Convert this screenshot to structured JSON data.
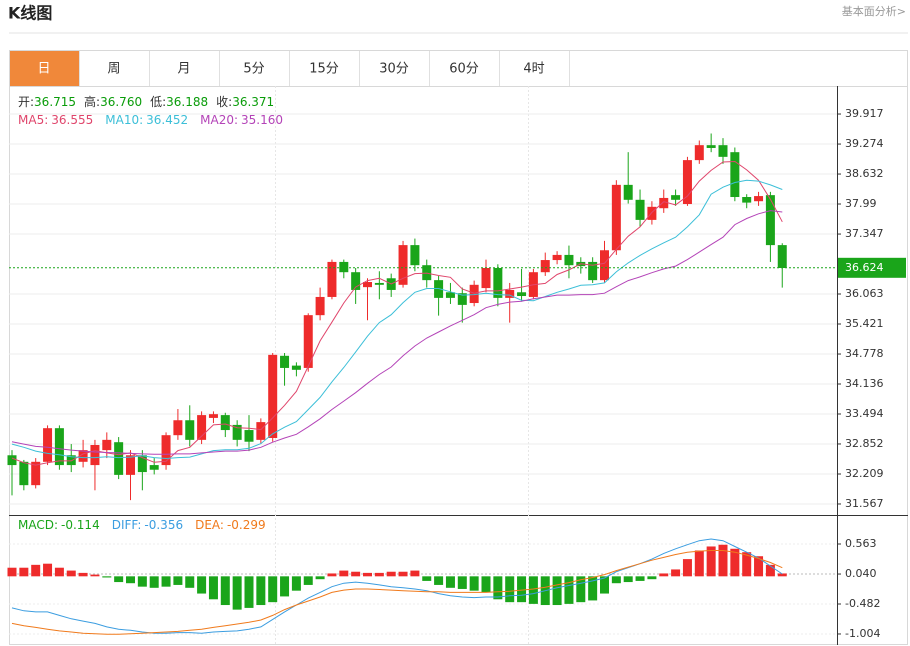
{
  "header": {
    "title": "K线图",
    "link": "基本面分析>"
  },
  "tabs": {
    "items": [
      "日",
      "周",
      "月",
      "5分",
      "15分",
      "30分",
      "60分",
      "4时"
    ],
    "active": 0
  },
  "chart_data": [
    {
      "type": "candlestick",
      "up_color": "#ee2b2b",
      "down_color": "#1aa51a",
      "grid": true,
      "ylim": [
        31.331,
        40.517
      ],
      "yticks": [
        31.567,
        32.209,
        32.852,
        33.494,
        34.136,
        34.778,
        35.421,
        36.063,
        37.347,
        37.99,
        38.632,
        39.274,
        39.917
      ],
      "last_price": 36.624,
      "last_price_color": "#1aa51a",
      "ohlc_legend": [
        {
          "label": "开:",
          "value": 36.715
        },
        {
          "label": "高:",
          "value": 36.76,
          "value_label": "36.760"
        },
        {
          "label": "低:",
          "value": 36.188
        },
        {
          "label": "收:",
          "value": 36.371
        }
      ],
      "ohlc_value_color": "#0a9c0a",
      "open": [
        32.61,
        32.47,
        31.97,
        32.47,
        33.19,
        32.61,
        32.47,
        32.4,
        32.72,
        32.89,
        32.19,
        32.61,
        32.4,
        32.4,
        33.04,
        33.36,
        32.94,
        33.41,
        33.47,
        33.26,
        33.15,
        32.94,
        32.98,
        34.74,
        34.53,
        34.48,
        35.61,
        36.0,
        36.75,
        36.53,
        36.21,
        36.3,
        36.4,
        36.26,
        37.11,
        36.68,
        36.36,
        36.1,
        36.08,
        35.87,
        36.19,
        36.62,
        35.98,
        36.1,
        36.0,
        36.53,
        36.79,
        36.9,
        36.75,
        36.75,
        36.36,
        37.0,
        38.4,
        38.08,
        37.65,
        37.9,
        38.18,
        37.99,
        38.93,
        39.25,
        39.25,
        39.1,
        38.14,
        38.05,
        38.18,
        37.11
      ],
      "high": [
        32.72,
        32.51,
        32.55,
        33.25,
        33.25,
        32.85,
        32.94,
        32.94,
        33.1,
        33.0,
        32.72,
        32.72,
        32.55,
        33.1,
        33.6,
        33.68,
        33.55,
        33.55,
        33.52,
        33.36,
        33.47,
        33.4,
        34.8,
        34.8,
        34.6,
        35.65,
        36.2,
        36.8,
        36.8,
        36.62,
        36.4,
        36.55,
        36.5,
        37.2,
        37.25,
        36.8,
        36.45,
        36.3,
        36.2,
        36.35,
        36.8,
        36.7,
        36.3,
        36.6,
        36.6,
        36.95,
        36.98,
        37.1,
        36.85,
        36.85,
        37.2,
        38.5,
        39.1,
        38.3,
        38.05,
        38.3,
        38.3,
        39.0,
        39.35,
        39.5,
        39.4,
        39.2,
        38.2,
        38.25,
        38.25,
        37.15
      ],
      "low": [
        31.75,
        31.86,
        31.9,
        32.4,
        32.3,
        32.25,
        32.35,
        31.86,
        32.55,
        32.1,
        31.65,
        31.86,
        32.2,
        32.3,
        32.94,
        32.8,
        32.85,
        33.3,
        33.0,
        32.8,
        32.7,
        32.85,
        32.9,
        34.1,
        34.3,
        34.4,
        35.5,
        35.95,
        36.4,
        35.85,
        35.5,
        35.95,
        36.0,
        36.2,
        36.55,
        36.2,
        35.6,
        35.85,
        35.45,
        35.8,
        36.1,
        35.8,
        35.45,
        35.9,
        35.95,
        36.45,
        36.7,
        36.4,
        36.5,
        36.3,
        36.3,
        36.9,
        38.0,
        37.5,
        37.55,
        37.8,
        37.95,
        37.95,
        38.85,
        39.1,
        38.85,
        38.05,
        37.9,
        37.95,
        36.75,
        36.2
      ],
      "close": [
        32.4,
        31.97,
        32.47,
        33.19,
        32.4,
        32.4,
        32.72,
        32.83,
        32.94,
        32.19,
        32.61,
        32.25,
        32.3,
        33.04,
        33.36,
        32.94,
        33.47,
        33.49,
        33.15,
        32.94,
        32.9,
        33.32,
        34.76,
        34.48,
        34.44,
        35.61,
        36.0,
        36.75,
        36.53,
        36.15,
        36.32,
        36.26,
        36.15,
        37.11,
        36.68,
        36.36,
        35.98,
        35.98,
        35.83,
        36.26,
        36.62,
        35.98,
        36.15,
        36.02,
        36.53,
        36.79,
        36.9,
        36.68,
        36.66,
        36.36,
        37.0,
        38.4,
        38.08,
        37.65,
        37.93,
        38.12,
        38.08,
        38.93,
        39.25,
        39.19,
        39.0,
        38.14,
        38.02,
        38.16,
        37.11,
        36.62
      ],
      "series": [
        {
          "name": "MA5:",
          "color": "#e0466c",
          "legend_value": 36.555,
          "values": [
            32.55,
            32.45,
            32.4,
            32.45,
            32.49,
            32.49,
            32.64,
            32.71,
            32.66,
            32.62,
            32.66,
            32.56,
            32.46,
            32.48,
            32.71,
            32.78,
            33.02,
            33.26,
            33.28,
            33.2,
            33.19,
            33.16,
            33.41,
            33.68,
            33.98,
            34.52,
            35.06,
            35.46,
            35.87,
            36.21,
            36.35,
            36.4,
            36.28,
            36.4,
            36.5,
            36.51,
            36.46,
            36.42,
            36.17,
            36.08,
            36.13,
            36.13,
            36.17,
            36.21,
            36.26,
            36.29,
            36.48,
            36.58,
            36.71,
            36.68,
            36.72,
            37.02,
            37.3,
            37.5,
            37.81,
            38.04,
            37.97,
            38.16,
            38.48,
            38.71,
            38.89,
            38.9,
            38.72,
            38.5,
            38.09,
            37.61
          ]
        },
        {
          "name": "MA10:",
          "color": "#3cbfd8",
          "legend_value": 36.452,
          "values": [
            32.85,
            32.78,
            32.7,
            32.65,
            32.62,
            32.58,
            32.56,
            32.56,
            32.58,
            32.56,
            32.57,
            32.6,
            32.56,
            32.54,
            32.56,
            32.57,
            32.64,
            32.71,
            32.73,
            32.73,
            32.76,
            32.86,
            33.07,
            33.21,
            33.33,
            33.59,
            33.85,
            34.18,
            34.49,
            34.82,
            35.16,
            35.45,
            35.62,
            35.88,
            36.1,
            36.18,
            36.18,
            36.11,
            36.04,
            36.05,
            36.08,
            36.05,
            36.04,
            35.93,
            35.92,
            36.01,
            36.1,
            36.17,
            36.25,
            36.26,
            36.3,
            36.54,
            36.73,
            36.89,
            37.03,
            37.16,
            37.28,
            37.5,
            37.76,
            38.2,
            38.35,
            38.45,
            38.5,
            38.48,
            38.4,
            38.3
          ]
        },
        {
          "name": "MA20:",
          "color": "#b444b8",
          "legend_value": 35.16,
          "legend_value_label": "35.160",
          "values": [
            32.9,
            32.85,
            32.8,
            32.78,
            32.75,
            32.72,
            32.7,
            32.68,
            32.67,
            32.66,
            32.65,
            32.64,
            32.63,
            32.63,
            32.64,
            32.64,
            32.66,
            32.68,
            32.7,
            32.7,
            32.72,
            32.78,
            32.89,
            32.98,
            33.06,
            33.22,
            33.39,
            33.59,
            33.77,
            33.95,
            34.15,
            34.34,
            34.5,
            34.74,
            34.95,
            35.12,
            35.25,
            35.38,
            35.5,
            35.62,
            35.77,
            35.84,
            35.89,
            35.91,
            35.96,
            36.0,
            36.04,
            36.04,
            36.05,
            36.05,
            36.08,
            36.22,
            36.35,
            36.43,
            36.52,
            36.6,
            36.66,
            36.8,
            36.96,
            37.12,
            37.28,
            37.55,
            37.68,
            37.78,
            37.85,
            37.82
          ]
        }
      ]
    },
    {
      "type": "macd",
      "up_color": "#ee2b2b",
      "down_color": "#1aa51a",
      "grid": true,
      "ylim": [
        -1.196,
        1.068
      ],
      "yticks": [
        -1.004,
        -0.482,
        {
          "value": 0.04,
          "label": "0.040"
        },
        0.563
      ],
      "series": [
        {
          "name": "MACD:",
          "kind": "bar",
          "color": "#1aa51a",
          "legend_value": -0.114,
          "values": [
            0.15,
            0.15,
            0.2,
            0.22,
            0.15,
            0.1,
            0.06,
            0.03,
            -0.02,
            -0.1,
            -0.12,
            -0.18,
            -0.2,
            -0.18,
            -0.15,
            -0.2,
            -0.3,
            -0.4,
            -0.5,
            -0.58,
            -0.55,
            -0.5,
            -0.45,
            -0.35,
            -0.25,
            -0.15,
            -0.05,
            0.05,
            0.1,
            0.08,
            0.06,
            0.06,
            0.08,
            0.08,
            0.1,
            -0.08,
            -0.15,
            -0.2,
            -0.22,
            -0.25,
            -0.28,
            -0.4,
            -0.45,
            -0.45,
            -0.48,
            -0.5,
            -0.5,
            -0.48,
            -0.45,
            -0.42,
            -0.3,
            -0.12,
            -0.1,
            -0.08,
            -0.05,
            0.05,
            0.12,
            0.3,
            0.45,
            0.52,
            0.55,
            0.48,
            0.42,
            0.35,
            0.2,
            0.05
          ]
        },
        {
          "name": "DIFF:",
          "kind": "line",
          "color": "#3b9de0",
          "legend_value": -0.356,
          "values": [
            -0.55,
            -0.6,
            -0.62,
            -0.62,
            -0.68,
            -0.74,
            -0.78,
            -0.82,
            -0.88,
            -0.92,
            -0.94,
            -0.97,
            -0.99,
            -0.99,
            -0.98,
            -0.98,
            -0.99,
            -0.97,
            -0.96,
            -0.95,
            -0.92,
            -0.88,
            -0.75,
            -0.62,
            -0.5,
            -0.38,
            -0.28,
            -0.18,
            -0.12,
            -0.1,
            -0.12,
            -0.15,
            -0.18,
            -0.2,
            -0.22,
            -0.25,
            -0.3,
            -0.34,
            -0.36,
            -0.37,
            -0.36,
            -0.36,
            -0.34,
            -0.33,
            -0.3,
            -0.25,
            -0.2,
            -0.16,
            -0.12,
            -0.08,
            -0.03,
            0.08,
            0.15,
            0.22,
            0.3,
            0.4,
            0.48,
            0.55,
            0.62,
            0.65,
            0.62,
            0.52,
            0.42,
            0.32,
            0.18,
            0.04
          ]
        },
        {
          "name": "DEA:",
          "kind": "line",
          "color": "#f07a1c",
          "legend_value": -0.299,
          "values": [
            -0.82,
            -0.86,
            -0.89,
            -0.92,
            -0.95,
            -0.97,
            -0.99,
            -1.0,
            -1.01,
            -1.01,
            -1.0,
            -0.99,
            -0.98,
            -0.97,
            -0.96,
            -0.94,
            -0.92,
            -0.89,
            -0.86,
            -0.83,
            -0.8,
            -0.76,
            -0.68,
            -0.58,
            -0.5,
            -0.43,
            -0.36,
            -0.28,
            -0.24,
            -0.22,
            -0.22,
            -0.23,
            -0.24,
            -0.25,
            -0.26,
            -0.27,
            -0.27,
            -0.28,
            -0.28,
            -0.28,
            -0.28,
            -0.27,
            -0.26,
            -0.24,
            -0.22,
            -0.19,
            -0.15,
            -0.11,
            -0.06,
            -0.02,
            0.03,
            0.1,
            0.16,
            0.22,
            0.28,
            0.33,
            0.38,
            0.42,
            0.44,
            0.45,
            0.45,
            0.42,
            0.37,
            0.31,
            0.24,
            0.15
          ]
        }
      ]
    }
  ]
}
